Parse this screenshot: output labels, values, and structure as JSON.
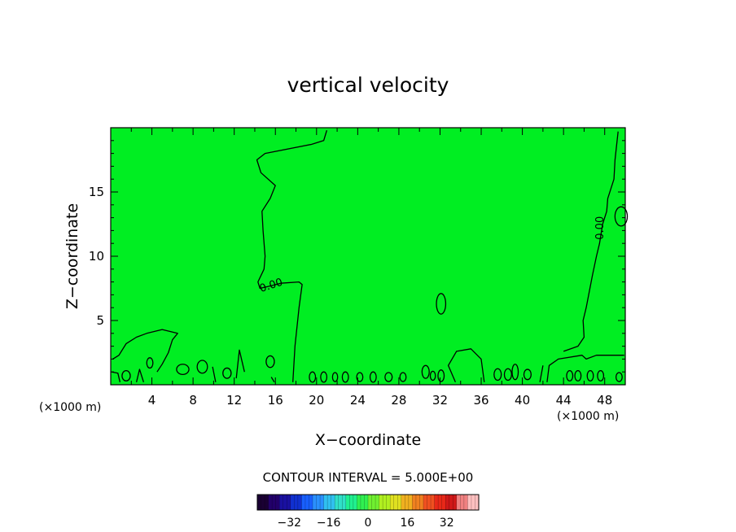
{
  "chart_data": {
    "type": "contour",
    "title": "vertical velocity",
    "xlabel": "X−coordinate",
    "ylabel": "Z−coordinate",
    "x_unit": "(×1000 m)",
    "y_unit": "(×1000 m)",
    "xlim": [
      0,
      50
    ],
    "ylim": [
      0,
      20
    ],
    "x_ticks": [
      4,
      8,
      12,
      16,
      20,
      24,
      28,
      32,
      36,
      40,
      44,
      48
    ],
    "y_ticks": [
      5,
      10,
      15
    ],
    "fill_color": "#00ee22",
    "contour_color": "#000000",
    "contour_labels": [
      {
        "text": "0.00",
        "x": 15.6,
        "y": 7.7,
        "angle": -18
      },
      {
        "text": "0.00",
        "x": 47.6,
        "y": 12.2,
        "angle": -90
      }
    ],
    "contour_interval_text": "CONTOUR INTERVAL = 5.000E+00",
    "colorbar": {
      "range": [
        -45,
        45
      ],
      "ticks": [
        -32,
        -16,
        0,
        16,
        32
      ],
      "tick_labels": [
        "−32",
        "−16",
        "0",
        "16",
        "32"
      ],
      "colors": [
        "#1a0033",
        "#22006a",
        "#1a10a0",
        "#1030d0",
        "#1860ff",
        "#2a90ff",
        "#30c0f0",
        "#30e0c8",
        "#20f090",
        "#30f050",
        "#70f030",
        "#b0f020",
        "#e0e020",
        "#f0b020",
        "#f08020",
        "#f05020",
        "#e82818",
        "#d01818",
        "#f08080",
        "#ffc0c0"
      ]
    },
    "contours": [
      [
        [
          17.7,
          0.2
        ],
        [
          17.9,
          3.0
        ],
        [
          18.3,
          6.0
        ],
        [
          18.6,
          7.8
        ],
        [
          18.3,
          8.0
        ],
        [
          16.5,
          7.9
        ],
        [
          15.6,
          7.7
        ],
        [
          14.5,
          7.5
        ],
        [
          14.3,
          8.0
        ],
        [
          14.9,
          9.0
        ],
        [
          15.0,
          10.0
        ],
        [
          14.8,
          12.0
        ],
        [
          14.7,
          13.5
        ],
        [
          15.5,
          14.5
        ],
        [
          16.0,
          15.5
        ],
        [
          14.6,
          16.5
        ],
        [
          14.2,
          17.5
        ],
        [
          15.0,
          18.0
        ],
        [
          19.5,
          18.7
        ],
        [
          20.7,
          19.0
        ],
        [
          21.0,
          19.8
        ]
      ],
      [
        [
          0.2,
          2.0
        ],
        [
          0.8,
          2.3
        ],
        [
          1.5,
          3.2
        ],
        [
          2.5,
          3.7
        ],
        [
          3.5,
          4.0
        ],
        [
          5.0,
          4.3
        ],
        [
          6.5,
          4.0
        ],
        [
          6.0,
          3.5
        ],
        [
          5.6,
          2.5
        ],
        [
          5.0,
          1.6
        ],
        [
          4.5,
          1.0
        ]
      ],
      [
        [
          42.4,
          0.2
        ],
        [
          42.6,
          1.5
        ],
        [
          43.5,
          2.0
        ],
        [
          45.8,
          2.3
        ],
        [
          46.2,
          2.0
        ],
        [
          47.2,
          2.3
        ],
        [
          48.5,
          2.3
        ],
        [
          49.9,
          2.3
        ]
      ],
      [
        [
          49.3,
          19.7
        ],
        [
          49.0,
          17.5
        ],
        [
          48.9,
          16.0
        ],
        [
          48.3,
          14.5
        ],
        [
          48.2,
          13.5
        ],
        [
          47.8,
          12.5
        ],
        [
          47.5,
          11.0
        ],
        [
          47.2,
          10.0
        ],
        [
          46.8,
          8.5
        ],
        [
          46.2,
          6.0
        ],
        [
          45.9,
          5.0
        ],
        [
          46.0,
          3.7
        ],
        [
          45.4,
          3.0
        ],
        [
          44.0,
          2.6
        ]
      ],
      [
        [
          33.5,
          0.2
        ],
        [
          32.8,
          1.5
        ],
        [
          33.6,
          2.6
        ],
        [
          35.0,
          2.8
        ],
        [
          36.0,
          2.0
        ],
        [
          36.3,
          0.2
        ]
      ],
      [
        [
          0.1,
          1.0
        ],
        [
          0.7,
          0.9
        ],
        [
          0.9,
          0.2
        ]
      ],
      [
        [
          2.5,
          0.2
        ],
        [
          2.8,
          1.2
        ],
        [
          3.2,
          0.2
        ]
      ],
      [
        [
          9.9,
          1.4
        ],
        [
          10.2,
          0.2
        ]
      ],
      [
        [
          12.2,
          0.5
        ],
        [
          12.5,
          2.7
        ],
        [
          13.0,
          1.0
        ]
      ],
      [
        [
          15.6,
          0.6
        ],
        [
          15.9,
          0.2
        ]
      ],
      [
        [
          42.0,
          1.5
        ],
        [
          41.7,
          0.2
        ]
      ]
    ],
    "closed_contours": [
      {
        "cx": 32.1,
        "cy": 6.3,
        "rx": 0.45,
        "ry": 0.8
      },
      {
        "cx": 49.6,
        "cy": 13.1,
        "rx": 0.6,
        "ry": 0.75
      },
      {
        "cx": 15.5,
        "cy": 1.8,
        "rx": 0.4,
        "ry": 0.45
      },
      {
        "cx": 7.0,
        "cy": 1.2,
        "rx": 0.6,
        "ry": 0.4
      },
      {
        "cx": 8.9,
        "cy": 1.4,
        "rx": 0.5,
        "ry": 0.5
      },
      {
        "cx": 11.3,
        "cy": 0.9,
        "rx": 0.4,
        "ry": 0.4
      },
      {
        "cx": 1.5,
        "cy": 0.7,
        "rx": 0.4,
        "ry": 0.4
      },
      {
        "cx": 3.8,
        "cy": 1.7,
        "rx": 0.3,
        "ry": 0.4
      },
      {
        "cx": 19.6,
        "cy": 0.6,
        "rx": 0.3,
        "ry": 0.4
      },
      {
        "cx": 20.7,
        "cy": 0.6,
        "rx": 0.3,
        "ry": 0.4
      },
      {
        "cx": 21.8,
        "cy": 0.6,
        "rx": 0.25,
        "ry": 0.35
      },
      {
        "cx": 22.8,
        "cy": 0.6,
        "rx": 0.3,
        "ry": 0.4
      },
      {
        "cx": 24.2,
        "cy": 0.6,
        "rx": 0.3,
        "ry": 0.35
      },
      {
        "cx": 25.5,
        "cy": 0.6,
        "rx": 0.3,
        "ry": 0.4
      },
      {
        "cx": 27.0,
        "cy": 0.6,
        "rx": 0.35,
        "ry": 0.35
      },
      {
        "cx": 28.4,
        "cy": 0.6,
        "rx": 0.3,
        "ry": 0.35
      },
      {
        "cx": 30.6,
        "cy": 1.0,
        "rx": 0.35,
        "ry": 0.5
      },
      {
        "cx": 31.3,
        "cy": 0.7,
        "rx": 0.25,
        "ry": 0.35
      },
      {
        "cx": 32.1,
        "cy": 0.7,
        "rx": 0.3,
        "ry": 0.45
      },
      {
        "cx": 37.6,
        "cy": 0.8,
        "rx": 0.35,
        "ry": 0.45
      },
      {
        "cx": 38.6,
        "cy": 0.8,
        "rx": 0.35,
        "ry": 0.45
      },
      {
        "cx": 39.3,
        "cy": 1.0,
        "rx": 0.3,
        "ry": 0.6
      },
      {
        "cx": 40.5,
        "cy": 0.8,
        "rx": 0.35,
        "ry": 0.4
      },
      {
        "cx": 44.6,
        "cy": 0.7,
        "rx": 0.3,
        "ry": 0.4
      },
      {
        "cx": 45.4,
        "cy": 0.7,
        "rx": 0.3,
        "ry": 0.4
      },
      {
        "cx": 46.6,
        "cy": 0.7,
        "rx": 0.3,
        "ry": 0.4
      },
      {
        "cx": 47.6,
        "cy": 0.7,
        "rx": 0.3,
        "ry": 0.4
      },
      {
        "cx": 49.4,
        "cy": 0.6,
        "rx": 0.3,
        "ry": 0.35
      }
    ]
  }
}
